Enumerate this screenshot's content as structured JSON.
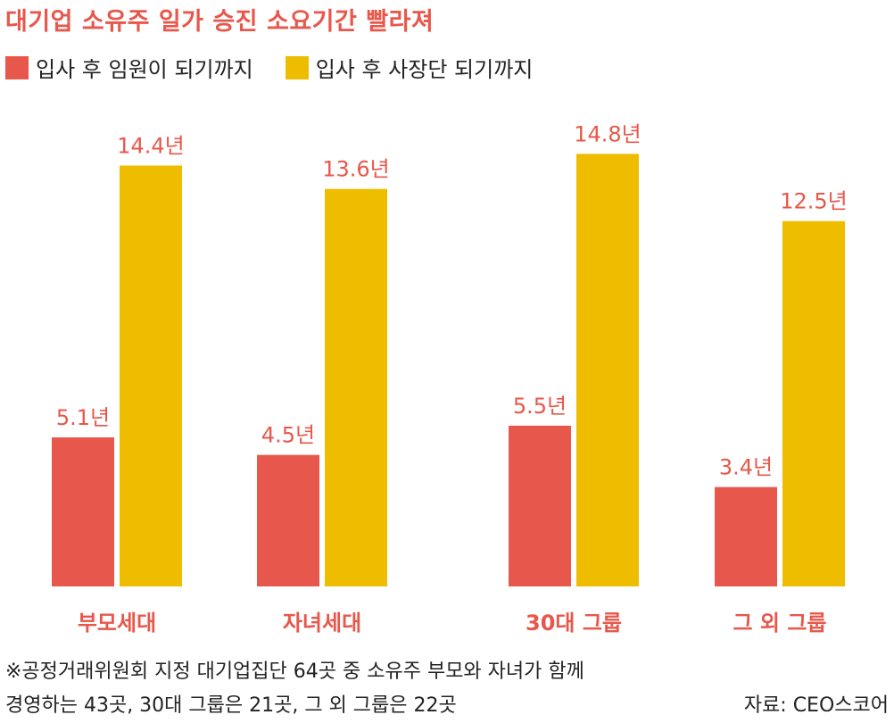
{
  "chart_data": {
    "type": "bar",
    "title": "대기업 소유주 일가 승진 소요기간 빨라져",
    "categories": [
      "부모세대",
      "자녀세대",
      "30대 그룹",
      "그 외 그룹"
    ],
    "unit": "년",
    "series": [
      {
        "name": "입사 후 임원이 되기까지",
        "color": "#e8574b",
        "values": [
          5.1,
          4.5,
          5.5,
          3.4
        ],
        "labels": [
          "5.1년",
          "4.5년",
          "5.5년",
          "3.4년"
        ]
      },
      {
        "name": "입사 후 사장단 되기까지",
        "color": "#eebd00",
        "values": [
          14.4,
          13.6,
          14.8,
          12.5
        ],
        "labels": [
          "14.4년",
          "13.6년",
          "14.8년",
          "12.5년"
        ]
      }
    ],
    "ylim": [
      0,
      16.4
    ],
    "grid": false,
    "legend": "top-left",
    "label_color": "#e8574b"
  },
  "footnote": {
    "line1": "※공정거래위원회 지정 대기업집단 64곳 중 소유주 부모와 자녀가 함께",
    "line2": "경영하는 43곳, 30대 그룹은 21곳, 그 외 그룹은 22곳"
  },
  "source": "자료: CEO스코어"
}
